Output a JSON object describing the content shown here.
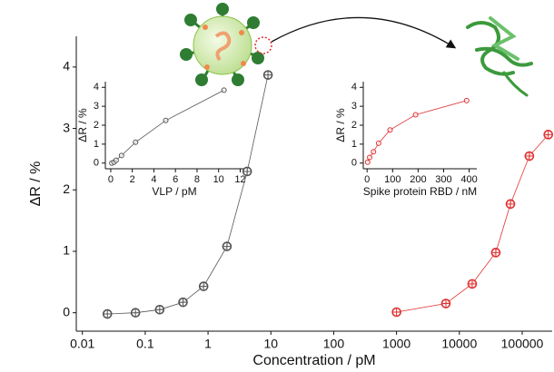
{
  "chart_data": [
    {
      "type": "line",
      "xscale": "log",
      "xlabel": "Concentration / pM",
      "ylabel": "ΔR / %",
      "xlim": [
        0.008,
        300000
      ],
      "ylim": [
        -0.3,
        4.5
      ],
      "xticks": [
        0.01,
        0.1,
        1,
        10,
        100,
        1000,
        10000,
        100000
      ],
      "yticks": [
        0,
        1,
        2,
        3,
        4
      ],
      "series": [
        {
          "name": "VLP",
          "color": "#555555",
          "x": [
            0.025,
            0.07,
            0.17,
            0.4,
            0.85,
            2,
            4.2,
            9
          ],
          "values": [
            -0.02,
            0.0,
            0.05,
            0.17,
            0.43,
            1.08,
            2.3,
            3.87
          ]
        },
        {
          "name": "Spike protein RBD",
          "color": "#e03030",
          "x": [
            1000,
            6100,
            16000,
            38000,
            65000,
            130000,
            260000
          ],
          "values": [
            0.01,
            0.15,
            0.47,
            0.98,
            1.77,
            2.55,
            2.9
          ]
        }
      ]
    },
    {
      "type": "line",
      "xscale": "linear",
      "xlabel": "VLP / pM",
      "ylabel": "ΔR / %",
      "xlim": [
        -0.5,
        12.3
      ],
      "ylim": [
        -0.3,
        4.3
      ],
      "xticks": [
        0,
        2,
        4,
        6,
        8,
        10,
        12
      ],
      "yticks": [
        0,
        1,
        2,
        3,
        4
      ],
      "series": [
        {
          "name": "VLP",
          "color": "#555555",
          "x": [
            0.1,
            0.3,
            0.5,
            1,
            2.3,
            5.1,
            10.5
          ],
          "values": [
            0,
            0.05,
            0.15,
            0.4,
            1.1,
            2.25,
            3.85
          ]
        }
      ]
    },
    {
      "type": "line",
      "xscale": "linear",
      "xlabel": "Spike protein RBD / nM",
      "ylabel": "ΔR / %",
      "xlim": [
        -15,
        430
      ],
      "ylim": [
        -0.3,
        4.3
      ],
      "xticks": [
        0,
        100,
        200,
        300,
        400
      ],
      "yticks": [
        0,
        1,
        2,
        3,
        4
      ],
      "series": [
        {
          "name": "Spike protein RBD",
          "color": "#e03030",
          "x": [
            2,
            10,
            25,
            45,
            90,
            190,
            390
          ],
          "values": [
            0.05,
            0.3,
            0.6,
            1.05,
            1.75,
            2.55,
            3.3
          ]
        }
      ]
    }
  ]
}
